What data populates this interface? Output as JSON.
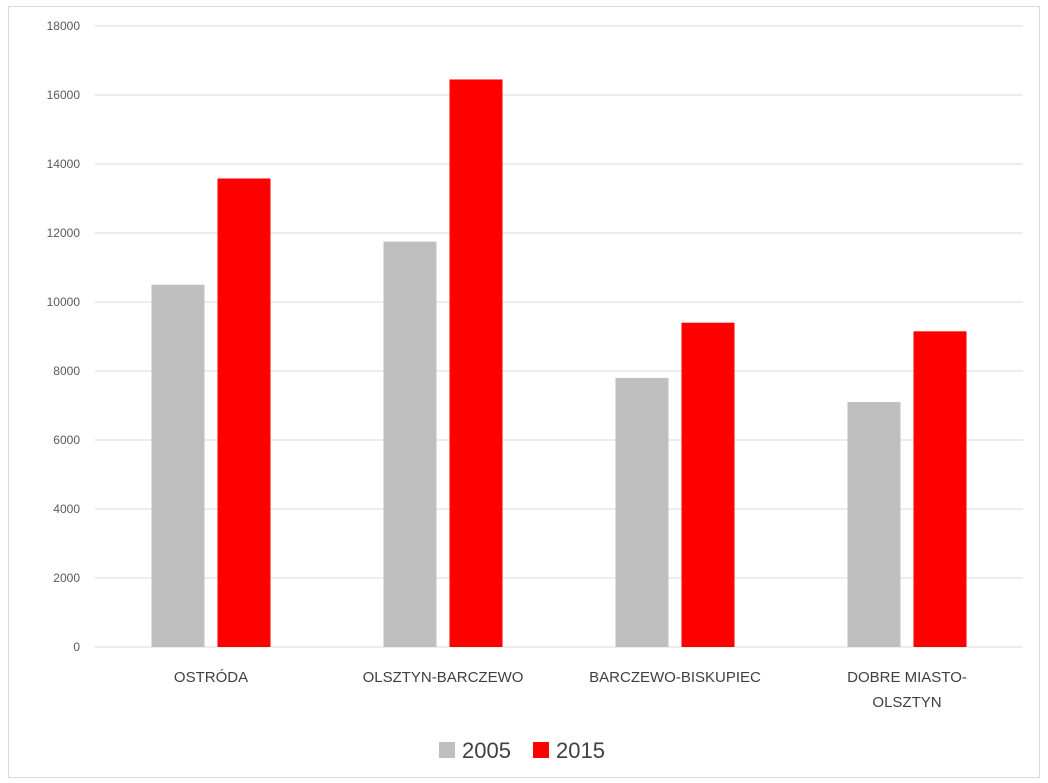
{
  "chart_data": {
    "type": "bar",
    "categories": [
      [
        "OSTRÓDA"
      ],
      [
        "OLSZTYN-BARCZEWO"
      ],
      [
        "BARCZEWO-BISKUPIEC"
      ],
      [
        "DOBRE MIASTO-",
        "OLSZTYN"
      ]
    ],
    "series": [
      {
        "name": "2005",
        "color": "#bfbfbf",
        "values": [
          10500,
          11750,
          7800,
          7100
        ]
      },
      {
        "name": "2015",
        "color": "#ff0000",
        "values": [
          13580,
          16450,
          9400,
          9150
        ]
      }
    ],
    "ylim": [
      0,
      18000
    ],
    "yticks": [
      "0",
      "2000",
      "4000",
      "6000",
      "8000",
      "10000",
      "12000",
      "14000",
      "16000",
      "18000"
    ],
    "grid": true,
    "legend": "bottom",
    "title": "",
    "xlabel": "",
    "ylabel": ""
  }
}
